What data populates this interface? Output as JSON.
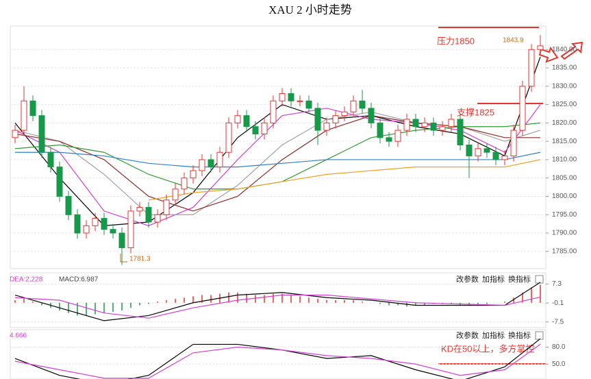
{
  "chart_data": {
    "type": "candlestick",
    "title": "XAU 2 小时走势",
    "up_color": "#e8332f",
    "down_color": "#17994a",
    "ylim": [
      1780.3,
      1846.4
    ],
    "yticks": [
      {
        "value": 1840,
        "label": "1840.00"
      },
      {
        "value": 1835,
        "label": "1835.00"
      },
      {
        "value": 1830,
        "label": "1830.00"
      },
      {
        "value": 1825,
        "label": "1825.00"
      },
      {
        "value": 1820,
        "label": "1820.00"
      },
      {
        "value": 1815,
        "label": "1815.00"
      },
      {
        "value": 1810,
        "label": "1810.00"
      },
      {
        "value": 1805,
        "label": "1805.00"
      },
      {
        "value": 1800,
        "label": "1800.00"
      },
      {
        "value": 1795,
        "label": "1795.00"
      },
      {
        "value": 1790,
        "label": "1790.00"
      },
      {
        "value": 1785,
        "label": "1785.00"
      }
    ],
    "grid": true,
    "open": [
      1816,
      1818,
      1826,
      1822,
      1812,
      1808,
      1800,
      1795,
      1790,
      1792,
      1794,
      1791,
      1790,
      1786,
      1796,
      1797,
      1793,
      1795,
      1799,
      1802,
      1805,
      1807,
      1810,
      1808,
      1812,
      1820,
      1822,
      1819,
      1817,
      1820,
      1826,
      1828,
      1826,
      1826,
      1824,
      1818,
      1820,
      1822,
      1823,
      1826,
      1824,
      1820,
      1816,
      1815,
      1818,
      1821,
      1819,
      1820,
      1818,
      1819,
      1821,
      1814,
      1811,
      1813,
      1812,
      1810,
      1811,
      1818,
      1830,
      1840
    ],
    "high": [
      1819.5,
      1830,
      1827.5,
      1823.5,
      1813.5,
      1809.5,
      1801.5,
      1796.5,
      1793.5,
      1795.5,
      1795.5,
      1792.5,
      1791.5,
      1797.5,
      1798.5,
      1798.5,
      1796.5,
      1800.5,
      1803.5,
      1806.5,
      1808.5,
      1811.5,
      1811.5,
      1813.5,
      1821.5,
      1823.5,
      1823.5,
      1820.5,
      1821.5,
      1827.5,
      1829.5,
      1829.5,
      1827.5,
      1827.5,
      1825.5,
      1821.5,
      1823.5,
      1824.5,
      1827.5,
      1829,
      1825.5,
      1821.5,
      1817.5,
      1819.5,
      1822.5,
      1822.5,
      1821.5,
      1821.5,
      1820.5,
      1822.5,
      1822.5,
      1815.5,
      1814.5,
      1814.5,
      1813.5,
      1812.5,
      1819.5,
      1831.5,
      1841.5,
      1843.9
    ],
    "low": [
      1814.5,
      1816.5,
      1820.5,
      1810.5,
      1806.5,
      1798.5,
      1793.5,
      1788.5,
      1788.5,
      1790.5,
      1789.5,
      1788.5,
      1781.3,
      1784.5,
      1794.5,
      1791.5,
      1791.5,
      1793.5,
      1797.5,
      1800.5,
      1803.5,
      1805.5,
      1806.5,
      1806.5,
      1810.5,
      1818.5,
      1817.5,
      1815.5,
      1815.5,
      1818.5,
      1824.5,
      1824.5,
      1824.5,
      1822.5,
      1814,
      1816.5,
      1818.5,
      1820.5,
      1821.5,
      1822.5,
      1818.5,
      1814.5,
      1813.5,
      1813.5,
      1816.5,
      1817.5,
      1817.5,
      1816.5,
      1816.5,
      1817.5,
      1812.5,
      1805,
      1809.5,
      1810.5,
      1808.5,
      1808.5,
      1809.5,
      1816.5,
      1828.5,
      1838.5
    ],
    "close": [
      1818,
      1826,
      1822,
      1812,
      1808,
      1800,
      1795,
      1790,
      1792,
      1794,
      1791,
      1790,
      1786,
      1796,
      1797,
      1793,
      1795,
      1799,
      1802,
      1805,
      1807,
      1810,
      1808,
      1812,
      1820,
      1822,
      1819,
      1817,
      1820,
      1826,
      1828,
      1826,
      1826,
      1824,
      1818,
      1820,
      1822,
      1823,
      1826,
      1824,
      1820,
      1816,
      1815,
      1818,
      1821,
      1819,
      1820,
      1818,
      1819,
      1821,
      1814,
      1811,
      1813,
      1812,
      1810,
      1811,
      1818,
      1830,
      1840,
      1841
    ],
    "line_x": [
      0,
      5,
      10,
      15,
      20,
      25,
      30,
      35,
      40,
      45,
      50,
      55,
      59
    ],
    "ma_lines": [
      {
        "color": "#000000",
        "values": [
          1820,
          1805,
          1792,
          1793,
          1801,
          1816,
          1825,
          1821,
          1822,
          1819,
          1817,
          1811,
          1838
        ]
      },
      {
        "color": "#d23fd2",
        "values": [
          1818,
          1812,
          1796,
          1792,
          1797,
          1810,
          1822,
          1824,
          1821,
          1820,
          1818,
          1812,
          1825
        ]
      },
      {
        "color": "#a0a0a0",
        "values": [
          1818,
          1815,
          1806,
          1795,
          1795,
          1803,
          1814,
          1821,
          1823,
          1820,
          1819,
          1815,
          1818
        ]
      },
      {
        "color": "#8b2a2a",
        "values": [
          1817,
          1815,
          1810,
          1800,
          1796,
          1800,
          1810,
          1818,
          1822,
          1820,
          1819,
          1816,
          1816
        ]
      },
      {
        "color": "#2f9a2f",
        "values": [
          1813,
          1814,
          1812,
          1806,
          1802,
          1802,
          1804,
          1810,
          1816,
          1818,
          1819,
          1819,
          1820
        ]
      },
      {
        "color": "#2f7fc9",
        "values": [
          1812,
          1812,
          1811,
          1809,
          1808,
          1808,
          1809,
          1810,
          1810,
          1810,
          1810,
          1810,
          1812
        ]
      },
      {
        "color": "#f0a020",
        "values": [
          null,
          null,
          null,
          1799,
          1801,
          1802,
          1804,
          1806,
          1807,
          1808,
          1808,
          1808,
          1810
        ]
      }
    ],
    "annotations": {
      "resistance": "压力1850",
      "support": "支撑1825",
      "high_label": "1843.9",
      "low_label": "1781.3",
      "kd_note": "KD在50以上，多方掌控"
    },
    "buttons": [
      "改参数",
      "加指标",
      "换指标"
    ],
    "macd": {
      "header": [
        "DEA:2.228",
        "MACD:6.987"
      ],
      "ylim": [
        -9.7,
        11.7
      ],
      "yticks": [
        7.3,
        -0.1,
        -7.5
      ],
      "hist": [
        1,
        1.5,
        0.5,
        -1,
        -2,
        -3,
        -4,
        -5,
        -5,
        -4.5,
        -4,
        -3.5,
        -3,
        -2,
        -1,
        -0.5,
        0.5,
        1,
        1.5,
        2,
        2.5,
        3,
        3,
        3.5,
        4,
        4,
        3.5,
        3,
        3,
        3.5,
        3.5,
        3,
        2.5,
        2,
        1.5,
        1,
        1,
        1,
        1,
        0.5,
        0,
        -0.5,
        -1,
        -1,
        -1.5,
        -1,
        -1,
        -0.5,
        -0.5,
        -0.5,
        -1,
        -1,
        -0.5,
        -0.5,
        0,
        0.5,
        2,
        4,
        6,
        7
      ],
      "series": [
        {
          "color": "#000000",
          "values": [
            3,
            -2,
            -7,
            -5,
            0,
            3,
            4,
            2,
            1,
            -1,
            -1,
            -1,
            8
          ]
        },
        {
          "color": "#d23fd2",
          "values": [
            2,
            1,
            -4,
            -6,
            -2,
            1,
            3,
            3,
            1.5,
            0,
            -0.5,
            -1,
            2.228
          ]
        }
      ]
    },
    "kd": {
      "header": "4.666",
      "ylim": [
        23.6,
        111
      ],
      "yticks": [
        {
          "value": 80,
          "label": "80.0"
        },
        {
          "value": 50,
          "label": "50.0"
        }
      ],
      "series": [
        {
          "color": "#000000",
          "values": [
            60,
            30,
            15,
            30,
            85,
            85,
            75,
            60,
            65,
            40,
            20,
            45,
            95
          ]
        },
        {
          "color": "#d23fd2",
          "values": [
            55,
            40,
            25,
            25,
            70,
            80,
            75,
            65,
            60,
            50,
            30,
            40,
            85
          ]
        }
      ]
    }
  }
}
